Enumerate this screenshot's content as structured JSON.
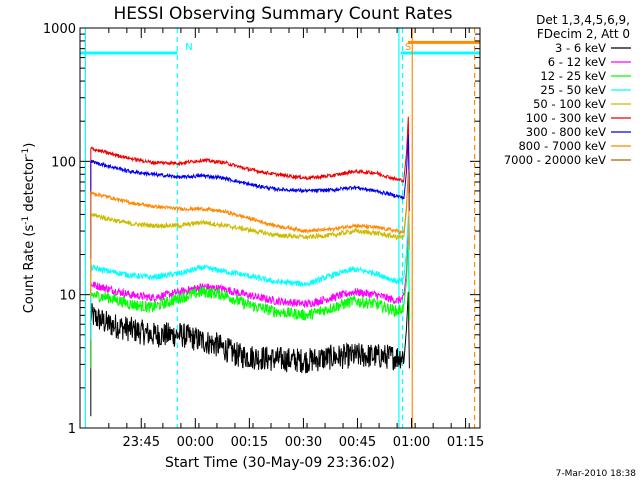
{
  "chart_data": {
    "type": "line",
    "title": "HESSI Observing Summary Count Rates",
    "xlabel": "Start Time (30-May-09 23:36:02)",
    "ylabel_main": "Count Rate (s",
    "ylabel_sup1": "-1",
    "ylabel_mid": " detector",
    "ylabel_sup2": "-1",
    "ylabel_end": ")",
    "x_range_min": [
      -8,
      103
    ],
    "x_ticks": [
      {
        "min": 9,
        "label": "23:45"
      },
      {
        "min": 24,
        "label": "00:00"
      },
      {
        "min": 39,
        "label": "00:15"
      },
      {
        "min": 54,
        "label": "00:30"
      },
      {
        "min": 69,
        "label": "00:45"
      },
      {
        "min": 84,
        "label": "01:00"
      },
      {
        "min": 99,
        "label": "01:15"
      }
    ],
    "y_scale": "log",
    "ylim": [
      1,
      1000
    ],
    "y_ticks": [
      {
        "value": 1,
        "label": "1"
      },
      {
        "value": 10,
        "label": "10"
      },
      {
        "value": 100,
        "label": "100"
      },
      {
        "value": 1000,
        "label": "1000"
      }
    ],
    "legend_header": [
      "Det 1,3,4,5,6,9,",
      "FDecim 2, Att 0"
    ],
    "footer_date": "7-Mar-2010 18:38",
    "markers": [
      {
        "label": "N",
        "color": "#00ffff"
      },
      {
        "label": "S",
        "color": "#ff8c00"
      }
    ],
    "night": [
      {
        "start": -8,
        "end": 19
      },
      {
        "start": 81,
        "end": 103
      }
    ],
    "saa": {
      "start": 83,
      "end": 103
    },
    "vertical_lines": [
      {
        "x": -6.5,
        "color": "#00ffff",
        "dashed": false
      },
      {
        "x": 19,
        "color": "#00ffff",
        "dashed": true
      },
      {
        "x": 80.5,
        "color": "#00ffff",
        "dashed": false
      },
      {
        "x": 81.5,
        "color": "#00ffff",
        "dashed": true
      },
      {
        "x": 84.2,
        "color": "#ff8c00",
        "dashed": false
      },
      {
        "x": 101.5,
        "color": "#ff8c00",
        "dashed": true
      }
    ],
    "series": [
      {
        "name": "3 - 6 keV",
        "color": "#000000",
        "noise": 0.22,
        "points": [
          [
            -5,
            7
          ],
          [
            0,
            6
          ],
          [
            6,
            5.5
          ],
          [
            12,
            5
          ],
          [
            20,
            5
          ],
          [
            30,
            4.2
          ],
          [
            36,
            3.5
          ],
          [
            45,
            3.3
          ],
          [
            55,
            3.2
          ],
          [
            62,
            3.4
          ],
          [
            70,
            3.5
          ],
          [
            80,
            3.4
          ],
          [
            82,
            3.5
          ]
        ]
      },
      {
        "name": "6 - 12 keV",
        "color": "#ff00ff",
        "noise": 0.07,
        "points": [
          [
            -5,
            12
          ],
          [
            0,
            11
          ],
          [
            6,
            10
          ],
          [
            12,
            9.5
          ],
          [
            20,
            10.5
          ],
          [
            26,
            11.5
          ],
          [
            32,
            11
          ],
          [
            38,
            10
          ],
          [
            46,
            9
          ],
          [
            55,
            8.5
          ],
          [
            62,
            9.5
          ],
          [
            68,
            10.5
          ],
          [
            74,
            10
          ],
          [
            80,
            9
          ],
          [
            82,
            9.5
          ]
        ]
      },
      {
        "name": "12 - 25 keV",
        "color": "#00ff00",
        "noise": 0.1,
        "points": [
          [
            -5,
            10
          ],
          [
            0,
            9.5
          ],
          [
            6,
            8.5
          ],
          [
            12,
            8
          ],
          [
            20,
            9.5
          ],
          [
            26,
            10.5
          ],
          [
            32,
            10
          ],
          [
            38,
            8.5
          ],
          [
            46,
            7.5
          ],
          [
            55,
            7
          ],
          [
            62,
            8
          ],
          [
            68,
            9
          ],
          [
            74,
            8.5
          ],
          [
            80,
            7.5
          ],
          [
            82,
            8
          ]
        ]
      },
      {
        "name": "25 - 50 keV",
        "color": "#00ffff",
        "noise": 0.05,
        "points": [
          [
            -5,
            16
          ],
          [
            0,
            15
          ],
          [
            6,
            14
          ],
          [
            12,
            13.5
          ],
          [
            20,
            14.5
          ],
          [
            26,
            16
          ],
          [
            32,
            15
          ],
          [
            38,
            14
          ],
          [
            46,
            12.5
          ],
          [
            55,
            12
          ],
          [
            62,
            14
          ],
          [
            68,
            15.5
          ],
          [
            74,
            14.5
          ],
          [
            80,
            12.5
          ],
          [
            82,
            13
          ]
        ]
      },
      {
        "name": "50 - 100 keV",
        "color": "#ccbb00",
        "noise": 0.04,
        "points": [
          [
            -5,
            40
          ],
          [
            0,
            37
          ],
          [
            6,
            34
          ],
          [
            12,
            33
          ],
          [
            20,
            33
          ],
          [
            26,
            35
          ],
          [
            32,
            33
          ],
          [
            38,
            31
          ],
          [
            46,
            28
          ],
          [
            55,
            27
          ],
          [
            62,
            28
          ],
          [
            68,
            30
          ],
          [
            74,
            29
          ],
          [
            80,
            27
          ],
          [
            82,
            27
          ]
        ]
      },
      {
        "name": "100 - 300 keV",
        "color": "#ee0000",
        "noise": 0.03,
        "points": [
          [
            -5,
            125
          ],
          [
            0,
            115
          ],
          [
            6,
            105
          ],
          [
            12,
            98
          ],
          [
            20,
            97
          ],
          [
            26,
            102
          ],
          [
            32,
            98
          ],
          [
            38,
            88
          ],
          [
            46,
            80
          ],
          [
            55,
            75
          ],
          [
            62,
            78
          ],
          [
            68,
            84
          ],
          [
            74,
            82
          ],
          [
            80,
            73
          ],
          [
            82,
            72
          ]
        ]
      },
      {
        "name": "300 - 800 keV",
        "color": "#0000ee",
        "noise": 0.03,
        "points": [
          [
            -5,
            100
          ],
          [
            0,
            92
          ],
          [
            6,
            84
          ],
          [
            12,
            80
          ],
          [
            20,
            76
          ],
          [
            26,
            78
          ],
          [
            32,
            75
          ],
          [
            38,
            68
          ],
          [
            46,
            62
          ],
          [
            55,
            60
          ],
          [
            62,
            61
          ],
          [
            68,
            64
          ],
          [
            74,
            60
          ],
          [
            80,
            55
          ],
          [
            82,
            53
          ]
        ]
      },
      {
        "name": "800 - 7000 keV",
        "color": "#ff8800",
        "noise": 0.03,
        "points": [
          [
            -5,
            58
          ],
          [
            0,
            54
          ],
          [
            6,
            49
          ],
          [
            12,
            46
          ],
          [
            20,
            44
          ],
          [
            26,
            44
          ],
          [
            32,
            42
          ],
          [
            38,
            38
          ],
          [
            46,
            33
          ],
          [
            55,
            30
          ],
          [
            62,
            31
          ],
          [
            68,
            33
          ],
          [
            74,
            32
          ],
          [
            80,
            30
          ],
          [
            82,
            29
          ]
        ]
      },
      {
        "name": "7000 - 20000 keV",
        "color": "#aa6600",
        "noise": 0.0,
        "points": []
      }
    ]
  }
}
